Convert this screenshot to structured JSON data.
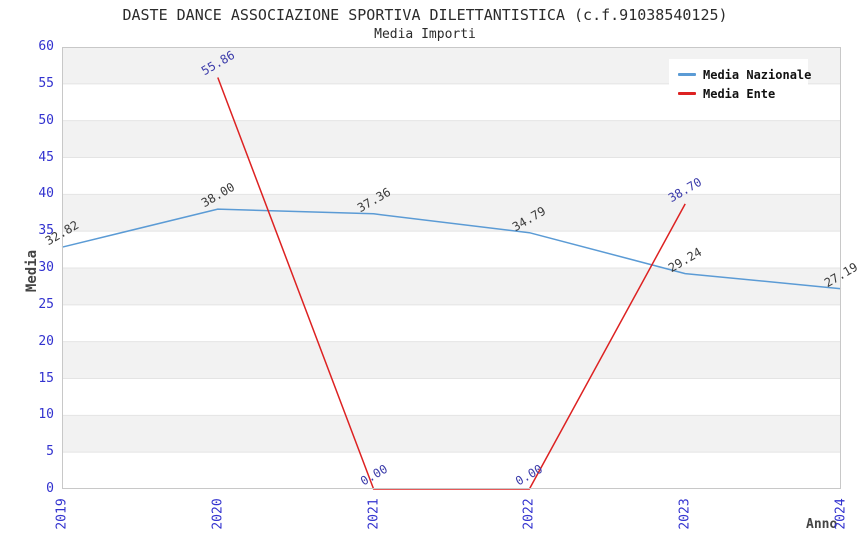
{
  "title": "DASTE DANCE ASSOCIAZIONE SPORTIVA DILETTANTISTICA (c.f.91038540125)",
  "subtitle": "Media Importi",
  "chart_data": {
    "type": "line",
    "x": [
      2019,
      2020,
      2021,
      2022,
      2023,
      2024
    ],
    "xlabel": "Anno",
    "ylabel": "Media",
    "ylim": [
      0,
      60
    ],
    "ytick_step": 5,
    "grid": "horizontal-bands-alternating",
    "legend_position": "top-right",
    "series": [
      {
        "name": "Media Nazionale",
        "color": "#5b9bd5",
        "label_color": "#3a3a3a",
        "values": [
          32.82,
          38.0,
          37.36,
          34.79,
          29.24,
          27.19
        ]
      },
      {
        "name": "Media Ente",
        "color": "#dd2222",
        "label_color": "#3c3caa",
        "values": [
          null,
          55.86,
          0.0,
          0.0,
          38.7,
          null
        ]
      }
    ]
  },
  "colors": {
    "band": "#f2f2f2",
    "grid": "#e4e4e4",
    "frame": "#c8c8c8",
    "tick": "#3232cf",
    "axis_label": "#444444",
    "title": "#2b2b2b"
  }
}
